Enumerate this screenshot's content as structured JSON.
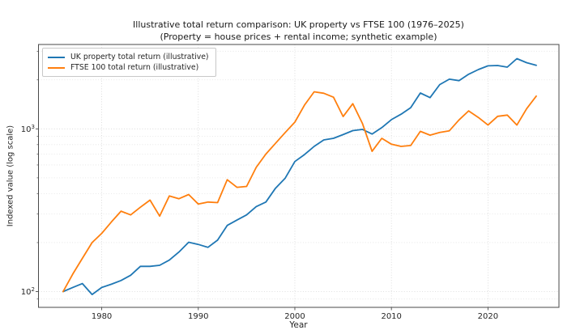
{
  "chart_data": {
    "type": "line",
    "title": "Illustrative total return comparison: UK property vs FTSE 100 (1976–2025)",
    "subtitle": "(Property = house prices + rental income; synthetic example)",
    "xlabel": "Year",
    "ylabel": "Indexed value (log scale)",
    "yscale": "log",
    "grid": true,
    "legend_position": "upper left",
    "xlim": [
      1973.45,
      2027.35
    ],
    "ylim": [
      80,
      3300
    ],
    "x_ticks": [
      1980,
      1990,
      2000,
      2010,
      2020
    ],
    "y_ticks": [
      {
        "value": 100,
        "base": "10",
        "exp": "2"
      },
      {
        "value": 1000,
        "base": "10",
        "exp": "3"
      }
    ],
    "y_minor_gridlines": [
      90,
      200,
      300,
      400,
      500,
      600,
      700,
      800,
      900,
      2000,
      3000
    ],
    "x": [
      1976,
      1977,
      1978,
      1979,
      1980,
      1981,
      1982,
      1983,
      1984,
      1985,
      1986,
      1987,
      1988,
      1989,
      1990,
      1991,
      1992,
      1993,
      1994,
      1995,
      1996,
      1997,
      1998,
      1999,
      2000,
      2001,
      2002,
      2003,
      2004,
      2005,
      2006,
      2007,
      2008,
      2009,
      2010,
      2011,
      2012,
      2013,
      2014,
      2015,
      2016,
      2017,
      2018,
      2019,
      2020,
      2021,
      2022,
      2023,
      2024,
      2025
    ],
    "series": [
      {
        "name": "UK property total return (illustrative)",
        "color": "#1f77b4",
        "values": [
          100,
          106,
          112,
          96,
          106,
          111,
          117,
          126,
          143,
          143,
          145,
          156,
          175,
          201,
          195,
          187,
          207,
          255,
          275,
          296,
          333,
          355,
          432,
          498,
          630,
          695,
          780,
          855,
          875,
          922,
          975,
          992,
          930,
          1018,
          1140,
          1230,
          1350,
          1660,
          1555,
          1870,
          2020,
          1978,
          2165,
          2315,
          2440,
          2450,
          2395,
          2700,
          2550,
          2455
        ]
      },
      {
        "name": "FTSE 100 total return (illustrative)",
        "color": "#ff7f0e",
        "values": [
          100,
          128,
          160,
          200,
          228,
          268,
          312,
          296,
          330,
          365,
          291,
          387,
          372,
          395,
          345,
          355,
          352,
          487,
          437,
          443,
          580,
          700,
          815,
          950,
          1100,
          1400,
          1690,
          1655,
          1565,
          1190,
          1428,
          1080,
          728,
          875,
          805,
          780,
          790,
          965,
          915,
          950,
          973,
          1135,
          1290,
          1175,
          1055,
          1195,
          1215,
          1055,
          1330,
          1590
        ]
      }
    ],
    "axis_color": "#4a4a4a",
    "tick_label_color": "#262626",
    "grid_major_color": "#d4d4d4",
    "grid_minor_color": "#e2e2e2"
  }
}
